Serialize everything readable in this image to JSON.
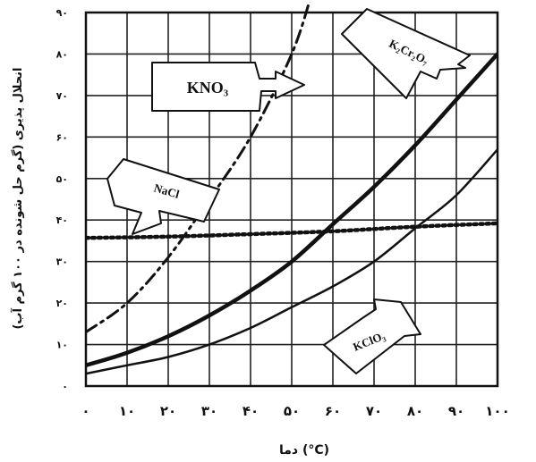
{
  "chart_data": {
    "type": "line",
    "xlabel": "دما (°C)",
    "ylabel": "انحلال پذیری (گرم حل شونده در ۱۰۰ گرم آب)",
    "xlim": [
      0,
      100
    ],
    "ylim": [
      0,
      90
    ],
    "x_ticks": [
      "۰",
      "۱۰",
      "۲۰",
      "۳۰",
      "۴۰",
      "۵۰",
      "۶۰",
      "۷۰",
      "۸۰",
      "۹۰",
      "۱۰۰"
    ],
    "y_ticks": [
      "۰",
      "۱۰",
      "۲۰",
      "۳۰",
      "۴۰",
      "۵۰",
      "۶۰",
      "۷۰",
      "۸۰",
      "۹۰"
    ],
    "grid": true,
    "series": [
      {
        "name": "KNO₃",
        "style": "dash-dot",
        "points": [
          [
            0,
            13
          ],
          [
            10,
            20
          ],
          [
            20,
            31
          ],
          [
            30,
            45
          ],
          [
            40,
            60
          ],
          [
            50,
            80
          ],
          [
            55,
            95
          ]
        ]
      },
      {
        "name": "K₂Cr₂O₇",
        "style": "thick",
        "points": [
          [
            0,
            5
          ],
          [
            10,
            8
          ],
          [
            20,
            12
          ],
          [
            30,
            17
          ],
          [
            40,
            23
          ],
          [
            50,
            30
          ],
          [
            60,
            39
          ],
          [
            70,
            48
          ],
          [
            80,
            58
          ],
          [
            90,
            69
          ],
          [
            100,
            80
          ]
        ]
      },
      {
        "name": "NaCl",
        "style": "dotted",
        "points": [
          [
            0,
            35.7
          ],
          [
            20,
            36
          ],
          [
            40,
            36.6
          ],
          [
            60,
            37.3
          ],
          [
            80,
            38.4
          ],
          [
            100,
            39.2
          ]
        ]
      },
      {
        "name": "KClO₃",
        "style": "thin",
        "points": [
          [
            0,
            3
          ],
          [
            10,
            5
          ],
          [
            20,
            7
          ],
          [
            30,
            10
          ],
          [
            40,
            14
          ],
          [
            50,
            19
          ],
          [
            60,
            24
          ],
          [
            70,
            30
          ],
          [
            80,
            38
          ],
          [
            90,
            46
          ],
          [
            100,
            57
          ]
        ]
      }
    ],
    "callouts": [
      "KNO₃",
      "K₂Cr₂O₇",
      "NaCl",
      "KClO₃"
    ]
  }
}
